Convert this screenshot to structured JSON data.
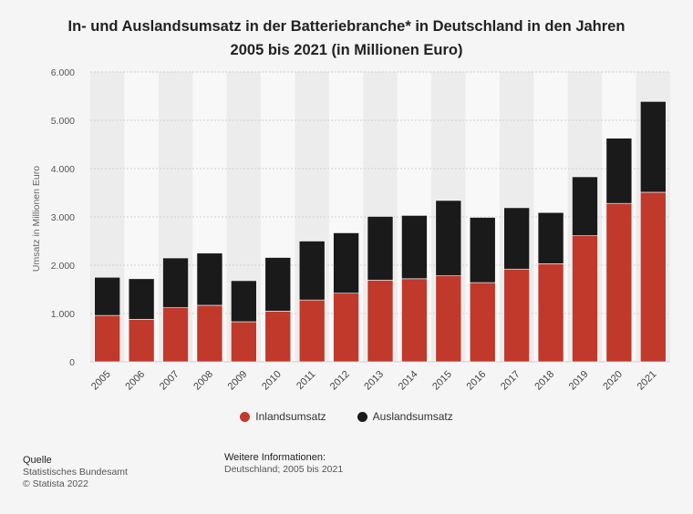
{
  "title_line1": "In- und Auslandsumsatz in der Batteriebranche* in Deutschland in den Jahren",
  "title_line2": "2005 bis 2021 (in Millionen Euro)",
  "legend": {
    "inland": "Inlandsumsatz",
    "ausland": "Auslandsumsatz"
  },
  "footer": {
    "source_header": "Quelle",
    "source_name": "Statistisches Bundesamt",
    "copyright": "© Statista 2022",
    "info_header": "Weitere Informationen:",
    "info_text": "Deutschland; 2005 bis 2021"
  },
  "colors": {
    "inland": "#c0392b",
    "ausland": "#1a1a1a"
  },
  "chart_data": {
    "type": "bar",
    "stacked": true,
    "title": "In- und Auslandsumsatz in der Batteriebranche* in Deutschland in den Jahren 2005 bis 2021 (in Millionen Euro)",
    "xlabel": "",
    "ylabel": "Umsatz in Millionen Euro",
    "ylim": [
      0,
      6000
    ],
    "yticks": [
      0,
      1000,
      2000,
      3000,
      4000,
      5000,
      6000
    ],
    "ytick_labels": [
      "0",
      "1.000",
      "2.000",
      "3.000",
      "4.000",
      "5.000",
      "6.000"
    ],
    "categories": [
      "2005",
      "2006",
      "2007",
      "2008",
      "2009",
      "2010",
      "2011",
      "2012",
      "2013",
      "2014",
      "2015",
      "2016",
      "2017",
      "2018",
      "2019",
      "2020",
      "2021"
    ],
    "series": [
      {
        "name": "Inlandsumsatz",
        "values": [
          960,
          880,
          1120,
          1170,
          830,
          1050,
          1280,
          1420,
          1690,
          1720,
          1780,
          1640,
          1920,
          2030,
          2610,
          3280,
          3510
        ]
      },
      {
        "name": "Auslandsumsatz",
        "values": [
          790,
          840,
          1030,
          1080,
          850,
          1110,
          1220,
          1250,
          1320,
          1310,
          1560,
          1350,
          1270,
          1060,
          1220,
          1350,
          1880
        ]
      }
    ],
    "legend_position": "bottom-center"
  }
}
